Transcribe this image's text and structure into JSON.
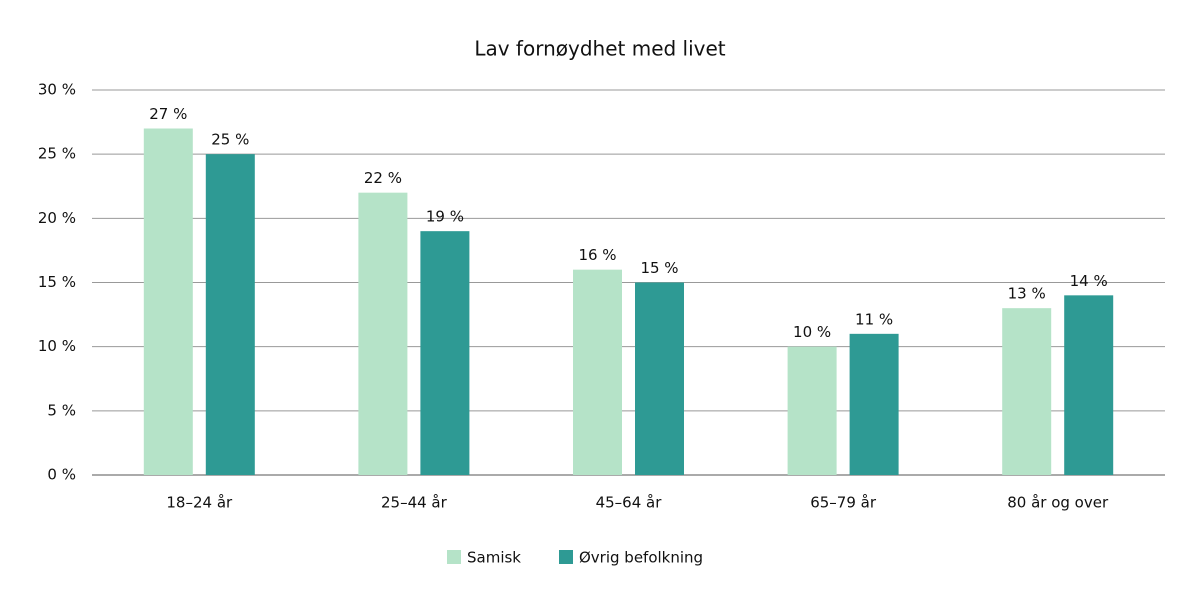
{
  "chart_data": {
    "type": "bar",
    "title": "Lav fornøydhet med livet",
    "categories": [
      "18–24 år",
      "25–44 år",
      "45–64 år",
      "65–79 år",
      "80 år og over"
    ],
    "series": [
      {
        "name": "Samisk",
        "color": "#b5e3c8",
        "values": [
          27,
          22,
          16,
          10,
          13
        ],
        "value_labels": [
          "27 %",
          "22 %",
          "16 %",
          "10 %",
          "13 %"
        ]
      },
      {
        "name": "Øvrig befolkning",
        "color": "#2e9a94",
        "values": [
          25,
          19,
          15,
          11,
          14
        ],
        "value_labels": [
          "25 %",
          "19 %",
          "15 %",
          "11 %",
          "14 %"
        ]
      }
    ],
    "ylim": [
      0,
      30
    ],
    "yticks": [
      {
        "value": 0,
        "label": "0 %"
      },
      {
        "value": 5,
        "label": "5 %"
      },
      {
        "value": 10,
        "label": "10 %"
      },
      {
        "value": 15,
        "label": "15 %"
      },
      {
        "value": 20,
        "label": "20 %"
      },
      {
        "value": 25,
        "label": "25 %"
      },
      {
        "value": 30,
        "label": "30 %"
      }
    ],
    "grid": true,
    "legend": "bottom"
  }
}
